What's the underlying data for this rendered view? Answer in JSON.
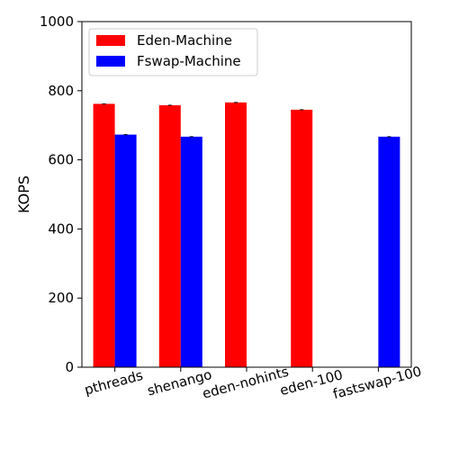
{
  "chart_data": {
    "type": "bar",
    "title": "",
    "xlabel": "",
    "ylabel": "KOPS",
    "ylim": [
      0,
      1000
    ],
    "yticks": [
      0,
      200,
      400,
      600,
      800,
      1000
    ],
    "categories": [
      "pthreads",
      "shenango",
      "eden-nohints",
      "eden-100",
      "fastswap-100"
    ],
    "series": [
      {
        "name": "Eden-Machine",
        "color": "#ff0000",
        "values": [
          762,
          758,
          766,
          745,
          null
        ]
      },
      {
        "name": "Fswap-Machine",
        "color": "#0000ff",
        "values": [
          673,
          667,
          null,
          null,
          667
        ]
      }
    ],
    "legend_position": "top-left",
    "grid": false
  }
}
